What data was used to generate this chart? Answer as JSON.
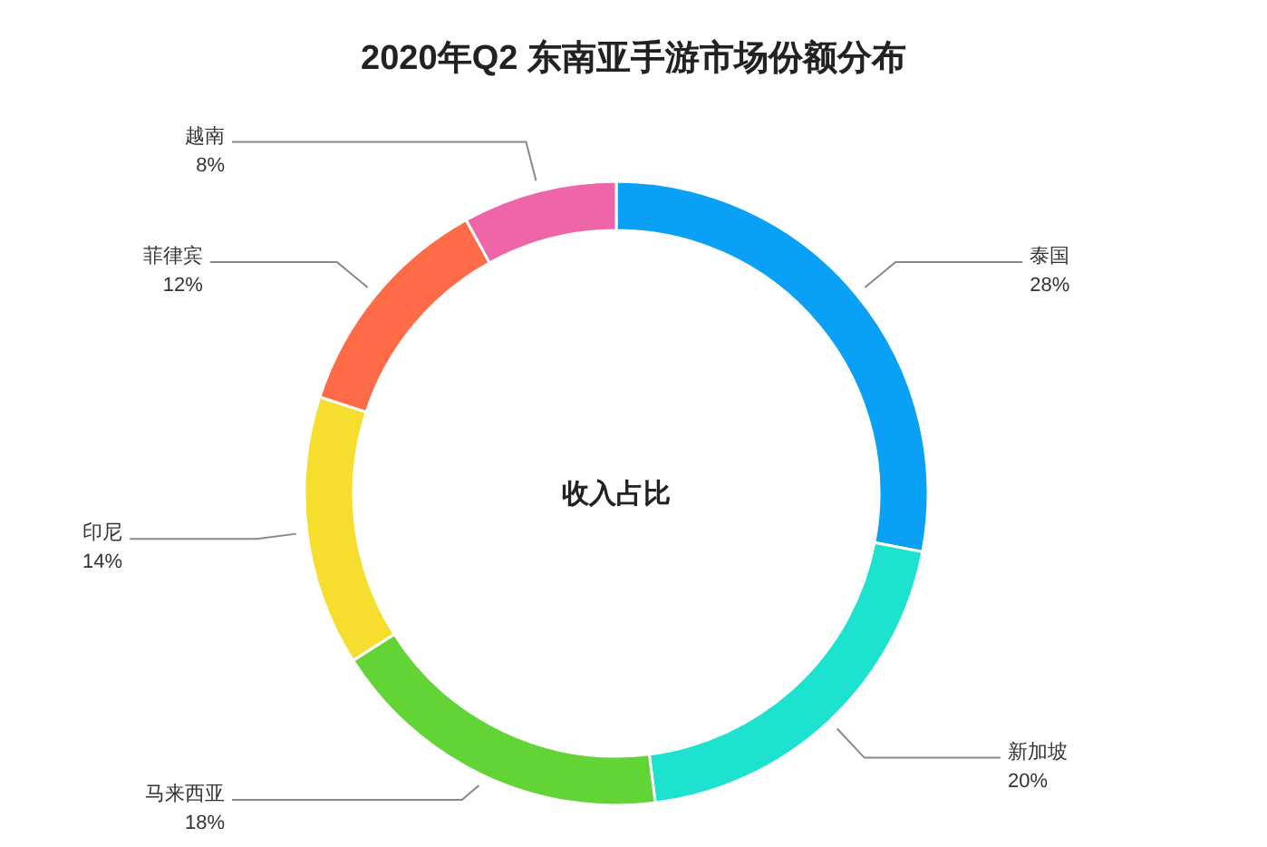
{
  "chart_data": {
    "type": "donut",
    "title": "2020年Q2 东南亚手游市场份额分布",
    "categories": [
      "泰国",
      "新加坡",
      "马来西亚",
      "印尼",
      "菲律宾",
      "越南"
    ],
    "values": [
      28,
      20,
      18,
      14,
      12,
      8
    ],
    "value_labels": [
      "28%",
      "20%",
      "18%",
      "14%",
      "12%",
      "8%"
    ],
    "colors": [
      "#0aa0f5",
      "#1de2d0",
      "#62d435",
      "#f7dd2e",
      "#ff6a47",
      "#ee65a8"
    ],
    "annotations": [
      "收入占比"
    ]
  }
}
